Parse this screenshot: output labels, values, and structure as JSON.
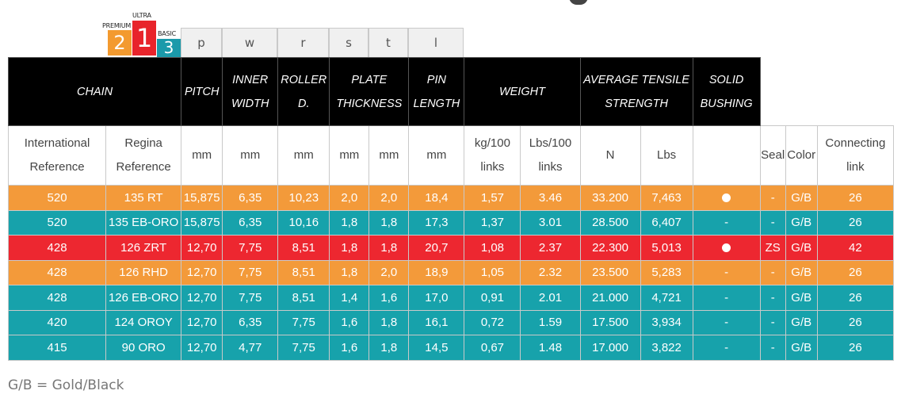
{
  "badges": [
    {
      "label": "PREMIUM",
      "number": "2",
      "color": "#f39a2f"
    },
    {
      "label": "ULTRA",
      "number": "1",
      "color": "#e8242b"
    },
    {
      "label": "BASIC",
      "number": "3",
      "color": "#1b9aaa"
    }
  ],
  "symbols": [
    "p",
    "w",
    "r",
    "s",
    "t",
    "l"
  ],
  "header": {
    "chain": "CHAIN",
    "pitch": "PITCH",
    "inner_width": "INNER WIDTH",
    "roller": "ROLLER D.",
    "plate": "PLATE THICKNESS",
    "pin": "PIN LENGTH",
    "weight": "WEIGHT",
    "tensile": "AVERAGE TENSILE STRENGTH",
    "bushing": "SOLID BUSHING"
  },
  "units": {
    "intl": "International Reference",
    "regina": "Regina Reference",
    "pitch": "mm",
    "width": "mm",
    "roller": "mm",
    "plate_s": "mm",
    "plate_t": "mm",
    "pin": "mm",
    "kg": "kg/100 links",
    "lbs": "Lbs/100 links",
    "n": "N",
    "lbs_t": "Lbs",
    "bushing": "",
    "seal": "Seal",
    "color": "Color",
    "link": "Connecting link"
  },
  "colors": {
    "orange": "#f39a3a",
    "teal": "#17a2ab",
    "red": "#ed2730"
  },
  "rows": [
    {
      "style": "orange",
      "intl": "520",
      "regina": "135 RT",
      "pitch": "15,875",
      "width": "6,35",
      "roller": "10,23",
      "s": "2,0",
      "t": "2,0",
      "pin": "18,4",
      "kg": "1,57",
      "lbs": "3.46",
      "n": "33.200",
      "lbs_t": "7,463",
      "bushing": "dot",
      "seal": "-",
      "color": "G/B",
      "link": "26"
    },
    {
      "style": "teal",
      "intl": "520",
      "regina": "135 EB-ORO",
      "pitch": "15,875",
      "width": "6,35",
      "roller": "10,16",
      "s": "1,8",
      "t": "1,8",
      "pin": "17,3",
      "kg": "1,37",
      "lbs": "3.01",
      "n": "28.500",
      "lbs_t": "6,407",
      "bushing": "-",
      "seal": "-",
      "color": "G/B",
      "link": "26"
    },
    {
      "style": "red",
      "intl": "428",
      "regina": "126 ZRT",
      "pitch": "12,70",
      "width": "7,75",
      "roller": "8,51",
      "s": "1,8",
      "t": "1,8",
      "pin": "20,7",
      "kg": "1,08",
      "lbs": "2.37",
      "n": "22.300",
      "lbs_t": "5,013",
      "bushing": "dot",
      "seal": "ZS",
      "color": "G/B",
      "link": "42"
    },
    {
      "style": "orange",
      "intl": "428",
      "regina": "126 RHD",
      "pitch": "12,70",
      "width": "7,75",
      "roller": "8,51",
      "s": "1,8",
      "t": "2,0",
      "pin": "18,9",
      "kg": "1,05",
      "lbs": "2.32",
      "n": "23.500",
      "lbs_t": "5,283",
      "bushing": "-",
      "seal": "-",
      "color": "G/B",
      "link": "26"
    },
    {
      "style": "teal",
      "intl": "428",
      "regina": "126 EB-ORO",
      "pitch": "12,70",
      "width": "7,75",
      "roller": "8,51",
      "s": "1,4",
      "t": "1,6",
      "pin": "17,0",
      "kg": "0,91",
      "lbs": "2.01",
      "n": "21.000",
      "lbs_t": "4,721",
      "bushing": "-",
      "seal": "-",
      "color": "G/B",
      "link": "26"
    },
    {
      "style": "teal",
      "intl": "420",
      "regina": "124 OROY",
      "pitch": "12,70",
      "width": "6,35",
      "roller": "7,75",
      "s": "1,6",
      "t": "1,8",
      "pin": "16,1",
      "kg": "0,72",
      "lbs": "1.59",
      "n": "17.500",
      "lbs_t": "3,934",
      "bushing": "-",
      "seal": "-",
      "color": "G/B",
      "link": "26"
    },
    {
      "style": "teal",
      "intl": "415",
      "regina": "90 ORO",
      "pitch": "12,70",
      "width": "4,77",
      "roller": "7,75",
      "s": "1,6",
      "t": "1,8",
      "pin": "14,5",
      "kg": "0,67",
      "lbs": "1.48",
      "n": "17.000",
      "lbs_t": "3,822",
      "bushing": "-",
      "seal": "-",
      "color": "G/B",
      "link": "26"
    }
  ],
  "footnote": "G/B = Gold/Black"
}
